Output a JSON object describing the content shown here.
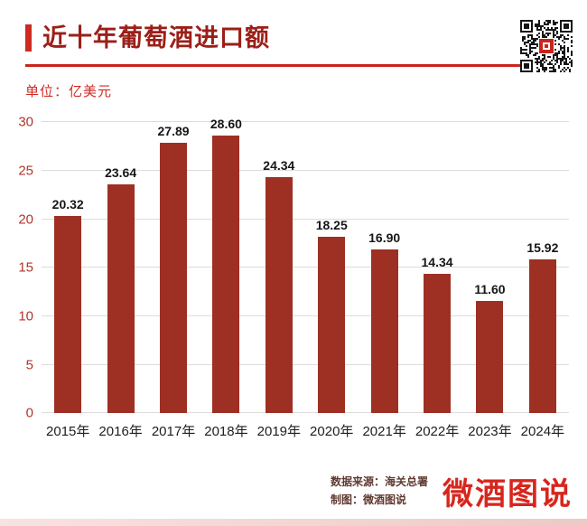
{
  "header": {
    "title": "近十年葡萄酒进口额",
    "unit_label": "单位：亿美元"
  },
  "footer": {
    "source": "数据来源：海关总署",
    "credit": "制图：微酒图说",
    "logo": "微酒图说"
  },
  "colors": {
    "bar": "#9e2f23",
    "accent_red": "#c9241c",
    "title_red": "#9b1f18",
    "axis_tick_red": "#b2342a",
    "logo_red": "#d7261d"
  },
  "chart_data": {
    "type": "bar",
    "title": "近十年葡萄酒进口额",
    "unit": "亿美元",
    "categories": [
      "2015年",
      "2016年",
      "2017年",
      "2018年",
      "2019年",
      "2020年",
      "2021年",
      "2022年",
      "2023年",
      "2024年"
    ],
    "values": [
      20.32,
      23.64,
      27.89,
      28.6,
      24.34,
      18.25,
      16.9,
      14.34,
      11.6,
      15.92
    ],
    "value_label_decimals": 2,
    "xlabel": "",
    "ylabel": "",
    "ylim": [
      0,
      30
    ],
    "ytick_step": 5,
    "grid": true,
    "legend": "none",
    "bar_color": "#9e2f23"
  }
}
